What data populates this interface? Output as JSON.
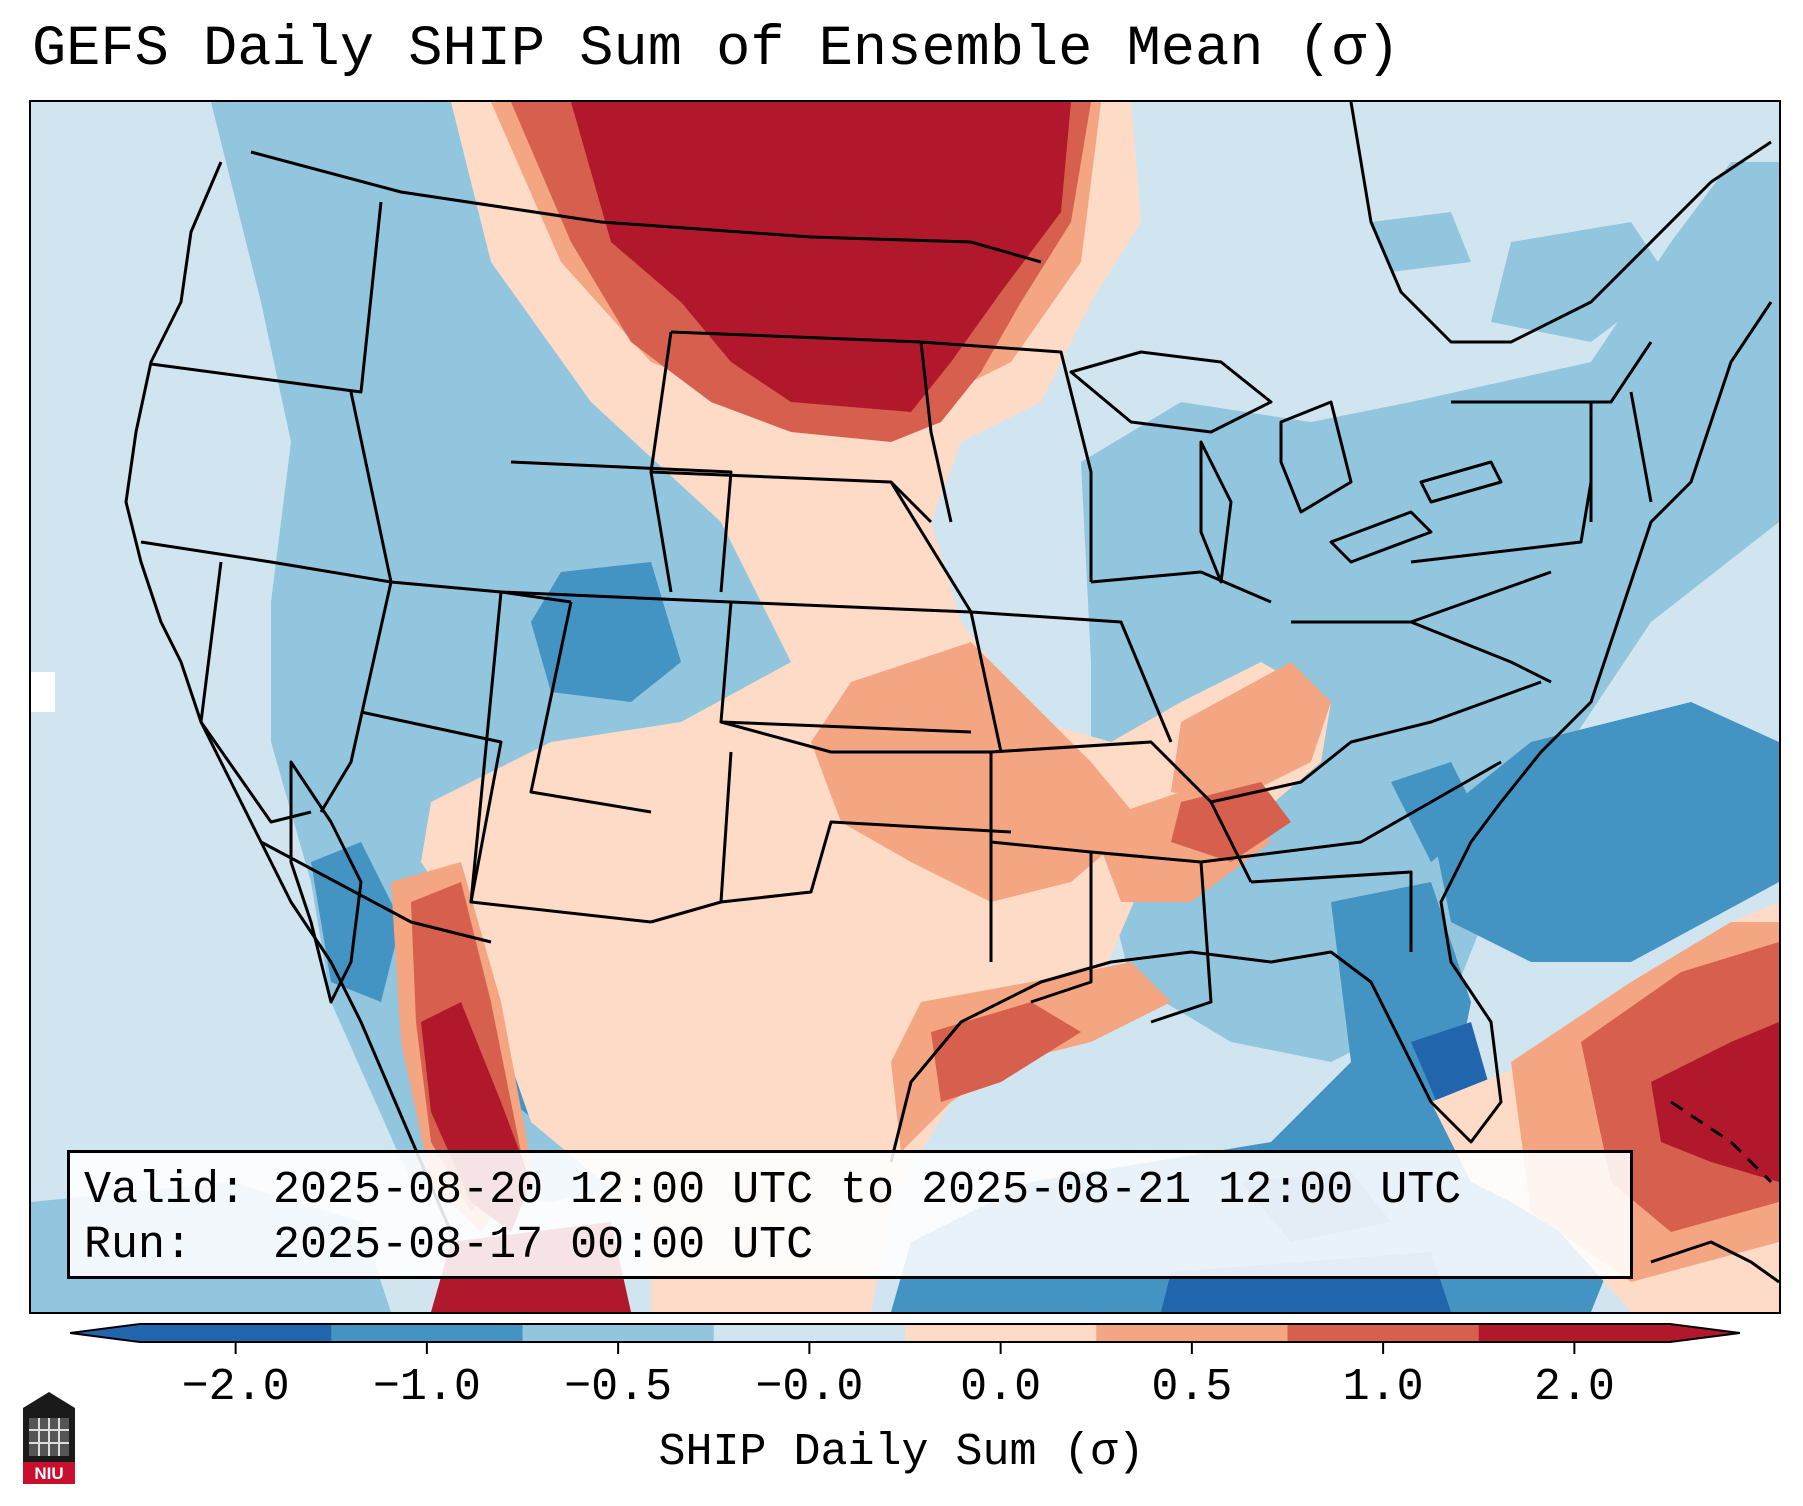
{
  "title": "GEFS Daily SHIP Sum of Ensemble Mean (σ)",
  "info": {
    "valid_label": "Valid:",
    "valid_value": "2025-08-20 12:00 UTC to 2025-08-21 12:00 UTC",
    "run_label": "Run:",
    "run_value": "2025-08-17 00:00 UTC"
  },
  "colorbar": {
    "label": "SHIP Daily Sum (σ)",
    "ticks": [
      "−2.0",
      "−1.0",
      "−0.5",
      "−0.0",
      "0.0",
      "0.5",
      "1.0",
      "2.0"
    ],
    "colors": [
      "#2166ac",
      "#4393c3",
      "#92c5de",
      "#d1e5f0",
      "#fddbc7",
      "#f4a582",
      "#d6604d",
      "#b2182b"
    ],
    "background_color": "#d1e5f0"
  },
  "map": {
    "field": "SHIP daily sum anomaly",
    "units": "σ"
  },
  "logo": {
    "text": "NIU"
  }
}
